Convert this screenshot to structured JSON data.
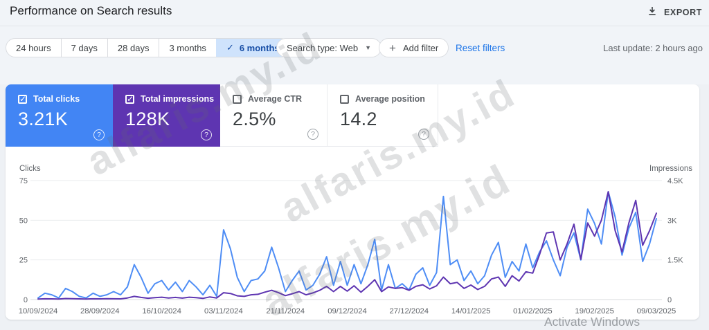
{
  "header": {
    "title": "Performance on Search results",
    "export_label": "EXPORT"
  },
  "filters": {
    "date_ranges": [
      {
        "label": "24 hours",
        "selected": false
      },
      {
        "label": "7 days",
        "selected": false
      },
      {
        "label": "28 days",
        "selected": false
      },
      {
        "label": "3 months",
        "selected": false
      },
      {
        "label": "6 months",
        "selected": true
      }
    ],
    "search_type_label": "Search type: Web",
    "add_filter_label": "Add filter",
    "reset_label": "Reset filters",
    "last_update": "Last update: 2 hours ago"
  },
  "icons": {
    "check": "✓",
    "dropdown": "▼",
    "plus": "+",
    "help": "?"
  },
  "cards": [
    {
      "label": "Total clicks",
      "value": "3.21K",
      "checked": true,
      "bg": "#4285f4"
    },
    {
      "label": "Total impressions",
      "value": "128K",
      "checked": true,
      "bg": "#5e35b1"
    },
    {
      "label": "Average CTR",
      "value": "2.5%",
      "checked": false,
      "bg": null
    },
    {
      "label": "Average position",
      "value": "14.2",
      "checked": false,
      "bg": null
    }
  ],
  "chart_data": {
    "type": "line",
    "x_tick_labels": [
      "10/09/2024",
      "28/09/2024",
      "16/10/2024",
      "03/11/2024",
      "21/11/2024",
      "09/12/2024",
      "27/12/2024",
      "14/01/2025",
      "01/02/2025",
      "19/02/2025",
      "09/03/2025"
    ],
    "x_note": "series values are sampled every 2 days from 10/09/2024 to 09/03/2025",
    "left_axis": {
      "label": "Clicks",
      "ticks": [
        "75",
        "50",
        "25",
        "0"
      ],
      "max": 75
    },
    "right_axis": {
      "label": "Impressions",
      "ticks": [
        "4.5K",
        "3K",
        "1.5K",
        "0"
      ],
      "max": 4500
    },
    "grid": true,
    "series": [
      {
        "name": "Total clicks",
        "axis": "left",
        "color": "#4e8df5",
        "values": [
          1,
          4,
          3,
          1,
          7,
          5,
          2,
          1,
          4,
          2,
          3,
          5,
          3,
          8,
          22,
          14,
          4,
          10,
          12,
          6,
          11,
          5,
          12,
          8,
          3,
          9,
          2,
          44,
          32,
          14,
          5,
          12,
          13,
          18,
          33,
          20,
          5,
          12,
          18,
          6,
          9,
          16,
          27,
          9,
          24,
          9,
          22,
          10,
          22,
          38,
          6,
          22,
          7,
          10,
          6,
          16,
          20,
          9,
          17,
          65,
          22,
          25,
          12,
          18,
          10,
          15,
          28,
          36,
          14,
          24,
          18,
          35,
          20,
          30,
          37,
          25,
          15,
          33,
          42,
          25,
          57,
          48,
          35,
          68,
          52,
          28,
          45,
          55,
          24,
          35,
          51
        ]
      },
      {
        "name": "Total impressions",
        "axis": "right",
        "color": "#5e35b1",
        "values": [
          20,
          30,
          25,
          20,
          40,
          35,
          25,
          20,
          30,
          25,
          35,
          30,
          25,
          60,
          120,
          80,
          50,
          70,
          90,
          60,
          80,
          55,
          90,
          70,
          45,
          100,
          60,
          260,
          230,
          140,
          120,
          180,
          200,
          280,
          350,
          260,
          150,
          220,
          300,
          180,
          250,
          350,
          500,
          300,
          500,
          320,
          520,
          280,
          500,
          750,
          300,
          480,
          420,
          450,
          350,
          500,
          560,
          400,
          520,
          850,
          600,
          650,
          420,
          550,
          380,
          500,
          780,
          850,
          500,
          900,
          700,
          1050,
          1000,
          1700,
          2520,
          2560,
          1500,
          2100,
          2850,
          1520,
          2900,
          2400,
          3000,
          4080,
          2600,
          1800,
          2900,
          3750,
          2050,
          2600,
          3265
        ]
      }
    ]
  },
  "watermark": {
    "text": "alfaris.my.id"
  },
  "os_overlay": {
    "text": "Activate Windows"
  }
}
